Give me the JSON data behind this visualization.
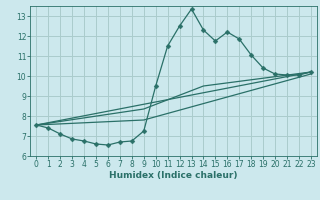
{
  "background_color": "#cce8ed",
  "grid_color": "#aacccc",
  "line_color": "#2a7068",
  "xlabel": "Humidex (Indice chaleur)",
  "ylim": [
    6,
    13.5
  ],
  "xlim": [
    -0.5,
    23.5
  ],
  "yticks": [
    6,
    7,
    8,
    9,
    10,
    11,
    12,
    13
  ],
  "xticks": [
    0,
    1,
    2,
    3,
    4,
    5,
    6,
    7,
    8,
    9,
    10,
    11,
    12,
    13,
    14,
    15,
    16,
    17,
    18,
    19,
    20,
    21,
    22,
    23
  ],
  "series1_x": [
    0,
    1,
    2,
    3,
    4,
    5,
    6,
    7,
    8,
    9,
    10,
    11,
    12,
    13,
    14,
    15,
    16,
    17,
    18,
    19,
    20,
    21,
    22,
    23
  ],
  "series1_y": [
    7.55,
    7.4,
    7.1,
    6.85,
    6.75,
    6.6,
    6.55,
    6.7,
    6.75,
    7.25,
    9.5,
    11.5,
    12.5,
    13.35,
    12.3,
    11.75,
    12.2,
    11.85,
    11.05,
    10.4,
    10.1,
    10.05,
    10.05,
    10.2
  ],
  "series2_x": [
    0,
    23
  ],
  "series2_y": [
    7.55,
    10.2
  ],
  "series3_x": [
    0,
    9,
    23
  ],
  "series3_y": [
    7.55,
    7.8,
    10.1
  ],
  "series4_x": [
    0,
    9,
    14,
    23
  ],
  "series4_y": [
    7.55,
    8.35,
    9.5,
    10.2
  ],
  "tick_fontsize": 5.5,
  "xlabel_fontsize": 6.5,
  "marker_size": 2.5,
  "linewidth": 0.9
}
